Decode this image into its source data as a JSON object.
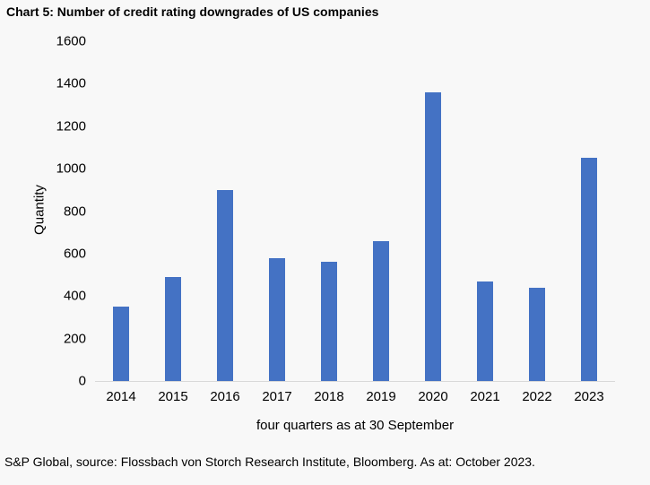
{
  "title": "Chart 5: Number of credit rating downgrades of US companies",
  "footer": "S&P Global, source: Flossbach von Storch Research Institute, Bloomberg. As at: October 2023.",
  "colors": {
    "bar": "#4472c4",
    "axis_line": "#d9d9d9",
    "background": "#f8f8f8",
    "text": "#000000"
  },
  "chart_data": {
    "type": "bar",
    "categories": [
      "2014",
      "2015",
      "2016",
      "2017",
      "2018",
      "2019",
      "2020",
      "2021",
      "2022",
      "2023"
    ],
    "values": [
      350,
      490,
      900,
      580,
      560,
      660,
      1360,
      470,
      440,
      1050
    ],
    "title": "Chart 5: Number of credit rating downgrades of US companies",
    "xlabel": "four quarters as at 30 September",
    "ylabel": "Quantity",
    "ylim": [
      0,
      1600
    ],
    "yticks": [
      0,
      200,
      400,
      600,
      800,
      1000,
      1200,
      1400,
      1600
    ],
    "grid": false,
    "legend": false,
    "bar_color": "#4472c4"
  }
}
